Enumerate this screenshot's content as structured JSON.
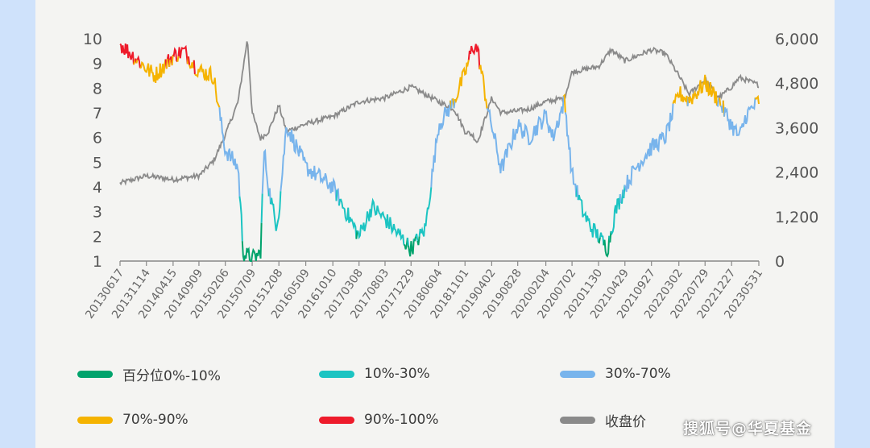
{
  "chart_data": {
    "type": "line",
    "x_tick_labels": [
      "20130617",
      "20131114",
      "20140415",
      "20140909",
      "20150206",
      "20150709",
      "20151208",
      "20160509",
      "20161010",
      "20170308",
      "20170803",
      "20171229",
      "20180604",
      "20181101",
      "20190402",
      "20190828",
      "20200204",
      "20200702",
      "20201130",
      "20210429",
      "20210927",
      "20220302",
      "20220729",
      "20221227",
      "20230531"
    ],
    "y_left": {
      "ticks": [
        1,
        2,
        3,
        4,
        5,
        6,
        7,
        8,
        9,
        10
      ],
      "ylim": [
        1,
        10
      ]
    },
    "y_right": {
      "ticks": [
        "0",
        "1,200",
        "2,400",
        "3,600",
        "4,800",
        "6,000"
      ],
      "ylim": [
        0,
        6000
      ]
    },
    "percentile_anchors": [
      [
        "20130617",
        9.8
      ],
      [
        "20131114",
        8.8
      ],
      [
        "20140101",
        8.5
      ],
      [
        "20140415",
        9.3
      ],
      [
        "20140615",
        9.5
      ],
      [
        "20140909",
        8.7
      ],
      [
        "20141201",
        8.5
      ],
      [
        "20150206",
        5.5
      ],
      [
        "20150420",
        4.8
      ],
      [
        "20150520",
        1.3
      ],
      [
        "20150709",
        1.1
      ],
      [
        "20150825",
        1.3
      ],
      [
        "20150915",
        5.5
      ],
      [
        "20151010",
        4.0
      ],
      [
        "20151120",
        2.5
      ],
      [
        "20151208",
        3.0
      ],
      [
        "20160120",
        6.5
      ],
      [
        "20160509",
        4.8
      ],
      [
        "20161010",
        4.0
      ],
      [
        "20170308",
        2.0
      ],
      [
        "20170520",
        3.2
      ],
      [
        "20170803",
        2.7
      ],
      [
        "20171229",
        1.5
      ],
      [
        "20180320",
        2.3
      ],
      [
        "20180604",
        6.5
      ],
      [
        "20180901",
        7.5
      ],
      [
        "20181101",
        8.6
      ],
      [
        "20181215",
        9.7
      ],
      [
        "20190110",
        9.6
      ],
      [
        "20190320",
        6.8
      ],
      [
        "20190402",
        6.5
      ],
      [
        "20190525",
        4.7
      ],
      [
        "20190828",
        6.5
      ],
      [
        "20191101",
        6.0
      ],
      [
        "20200204",
        6.9
      ],
      [
        "20200315",
        6.0
      ],
      [
        "20200520",
        7.5
      ],
      [
        "20200702",
        4.5
      ],
      [
        "20200901",
        3.0
      ],
      [
        "20201015",
        2.4
      ],
      [
        "20201130",
        2.0
      ],
      [
        "20210120",
        1.5
      ],
      [
        "20210305",
        3.0
      ],
      [
        "20210429",
        4.0
      ],
      [
        "20210701",
        4.8
      ],
      [
        "20210927",
        5.6
      ],
      [
        "20211215",
        6.0
      ],
      [
        "20220302",
        7.8
      ],
      [
        "20220429",
        7.5
      ],
      [
        "20220729",
        8.2
      ],
      [
        "20221015",
        7.5
      ],
      [
        "20221227",
        6.5
      ],
      [
        "20230210",
        6.0
      ],
      [
        "20230320",
        6.9
      ],
      [
        "20230531",
        7.5
      ]
    ],
    "close_anchors": [
      [
        "20130617",
        2100
      ],
      [
        "20131114",
        2300
      ],
      [
        "20140415",
        2200
      ],
      [
        "20140909",
        2300
      ],
      [
        "20141201",
        2700
      ],
      [
        "20150206",
        3400
      ],
      [
        "20150420",
        4300
      ],
      [
        "20150612",
        6000
      ],
      [
        "20150709",
        4000
      ],
      [
        "20150825",
        3300
      ],
      [
        "20151010",
        3500
      ],
      [
        "20151208",
        4200
      ],
      [
        "20160120",
        3500
      ],
      [
        "20160509",
        3700
      ],
      [
        "20161010",
        3900
      ],
      [
        "20170308",
        4300
      ],
      [
        "20170803",
        4400
      ],
      [
        "20171229",
        4700
      ],
      [
        "20180320",
        4500
      ],
      [
        "20180604",
        4300
      ],
      [
        "20180901",
        4100
      ],
      [
        "20181101",
        3500
      ],
      [
        "20181215",
        3400
      ],
      [
        "20190110",
        3200
      ],
      [
        "20190320",
        4200
      ],
      [
        "20190402",
        4400
      ],
      [
        "20190525",
        4000
      ],
      [
        "20190828",
        4050
      ],
      [
        "20191101",
        4100
      ],
      [
        "20200204",
        4300
      ],
      [
        "20200520",
        4400
      ],
      [
        "20200702",
        5100
      ],
      [
        "20201130",
        5250
      ],
      [
        "20210210",
        5700
      ],
      [
        "20210429",
        5400
      ],
      [
        "20210927",
        5700
      ],
      [
        "20211215",
        5600
      ],
      [
        "20220302",
        5000
      ],
      [
        "20220429",
        4500
      ],
      [
        "20220729",
        4900
      ],
      [
        "20221015",
        4400
      ],
      [
        "20221227",
        4700
      ],
      [
        "20230210",
        4950
      ],
      [
        "20230531",
        4750
      ]
    ],
    "color_bands": [
      {
        "range": [
          0,
          10
        ],
        "color": "#00a36c"
      },
      {
        "range": [
          10,
          30
        ],
        "color": "#1cc4c2"
      },
      {
        "range": [
          30,
          70
        ],
        "color": "#78b4ec"
      },
      {
        "range": [
          70,
          90
        ],
        "color": "#f5b300"
      },
      {
        "range": [
          90,
          100
        ],
        "color": "#ee1b2b"
      }
    ],
    "close_color": "#8a8a8a",
    "legend": [
      {
        "label": "百分位0%-10%",
        "color": "#00a36c"
      },
      {
        "label": "10%-30%",
        "color": "#1cc4c2"
      },
      {
        "label": "30%-70%",
        "color": "#78b4ec"
      },
      {
        "label": "70%-90%",
        "color": "#f5b300"
      },
      {
        "label": "90%-100%",
        "color": "#ee1b2b"
      },
      {
        "label": "收盘价",
        "color": "#8a8a8a"
      }
    ]
  },
  "watermark": "搜狐号@华夏基金"
}
